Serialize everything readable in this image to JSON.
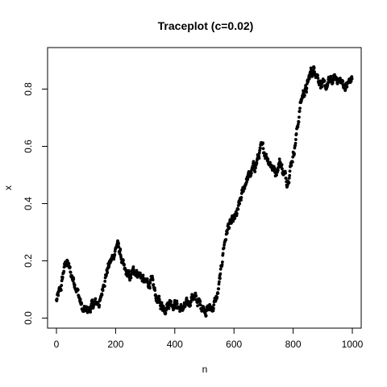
{
  "chart_data": {
    "type": "scatter",
    "title": "Traceplot (c=0.02)",
    "xlabel": "n",
    "ylabel": "x",
    "xlim": [
      -30,
      1030
    ],
    "ylim": [
      -0.035,
      0.945
    ],
    "x_ticks": [
      0,
      200,
      400,
      600,
      800,
      1000
    ],
    "x_tick_labels": [
      "0",
      "200",
      "400",
      "600",
      "800",
      "1000"
    ],
    "y_ticks": [
      0.0,
      0.2,
      0.4,
      0.6,
      0.8
    ],
    "y_tick_labels": [
      "0.0",
      "0.2",
      "0.4",
      "0.6",
      "0.8"
    ],
    "point_color": "#000000",
    "n_points": 1000,
    "trend": [
      [
        0,
        0.06
      ],
      [
        15,
        0.1
      ],
      [
        25,
        0.17
      ],
      [
        35,
        0.2
      ],
      [
        50,
        0.15
      ],
      [
        65,
        0.12
      ],
      [
        80,
        0.06
      ],
      [
        90,
        0.02
      ],
      [
        110,
        0.03
      ],
      [
        130,
        0.05
      ],
      [
        150,
        0.06
      ],
      [
        160,
        0.13
      ],
      [
        175,
        0.18
      ],
      [
        190,
        0.21
      ],
      [
        205,
        0.26
      ],
      [
        215,
        0.23
      ],
      [
        230,
        0.16
      ],
      [
        250,
        0.14
      ],
      [
        265,
        0.17
      ],
      [
        285,
        0.15
      ],
      [
        300,
        0.12
      ],
      [
        320,
        0.13
      ],
      [
        335,
        0.08
      ],
      [
        350,
        0.05
      ],
      [
        365,
        0.04
      ],
      [
        385,
        0.06
      ],
      [
        405,
        0.05
      ],
      [
        420,
        0.03
      ],
      [
        440,
        0.04
      ],
      [
        460,
        0.08
      ],
      [
        475,
        0.06
      ],
      [
        495,
        0.04
      ],
      [
        510,
        0.03
      ],
      [
        530,
        0.04
      ],
      [
        545,
        0.08
      ],
      [
        555,
        0.15
      ],
      [
        565,
        0.25
      ],
      [
        580,
        0.32
      ],
      [
        595,
        0.33
      ],
      [
        610,
        0.36
      ],
      [
        625,
        0.42
      ],
      [
        640,
        0.48
      ],
      [
        655,
        0.5
      ],
      [
        675,
        0.54
      ],
      [
        690,
        0.59
      ],
      [
        705,
        0.58
      ],
      [
        720,
        0.55
      ],
      [
        740,
        0.51
      ],
      [
        755,
        0.55
      ],
      [
        770,
        0.5
      ],
      [
        780,
        0.48
      ],
      [
        795,
        0.55
      ],
      [
        805,
        0.6
      ],
      [
        815,
        0.67
      ],
      [
        825,
        0.75
      ],
      [
        835,
        0.79
      ],
      [
        845,
        0.8
      ],
      [
        860,
        0.86
      ],
      [
        875,
        0.87
      ],
      [
        890,
        0.83
      ],
      [
        905,
        0.8
      ],
      [
        920,
        0.82
      ],
      [
        935,
        0.83
      ],
      [
        950,
        0.84
      ],
      [
        965,
        0.82
      ],
      [
        980,
        0.81
      ],
      [
        1000,
        0.84
      ]
    ]
  }
}
